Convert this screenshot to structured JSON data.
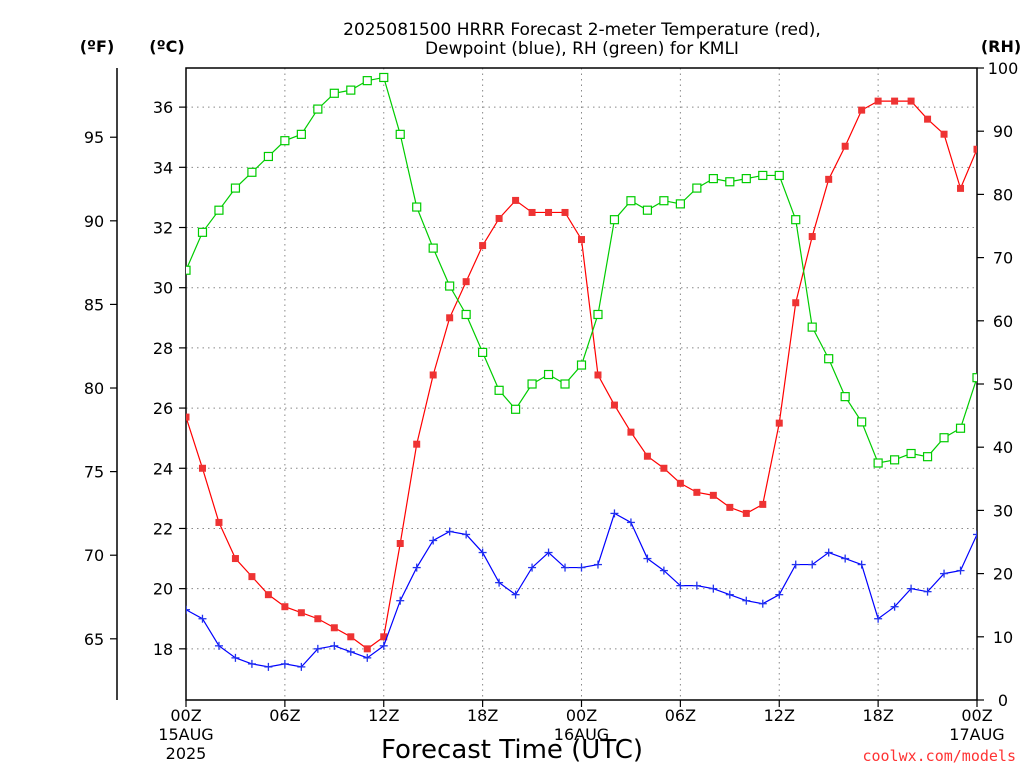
{
  "header": {
    "title_line1": "2025081500 HRRR Forecast 2-meter Temperature (red),",
    "title_line2": "Dewpoint (blue), RH (green) for KMLI",
    "unit_f": "(ºF)",
    "unit_c": "(ºC)",
    "unit_rh": "(RH)"
  },
  "footer": {
    "xlabel": "Forecast Time (UTC)",
    "credit": "coolwx.com/models"
  },
  "chart_data": {
    "type": "line",
    "x_unit": "forecast hour from 2025-08-15 00Z",
    "x": [
      0,
      1,
      2,
      3,
      4,
      5,
      6,
      7,
      8,
      9,
      10,
      11,
      12,
      13,
      14,
      15,
      16,
      17,
      18,
      19,
      20,
      21,
      22,
      23,
      24,
      25,
      26,
      27,
      28,
      29,
      30,
      31,
      32,
      33,
      34,
      35,
      36,
      37,
      38,
      39,
      40,
      41,
      42,
      43,
      44,
      45,
      46,
      47,
      48
    ],
    "xlim": [
      0,
      48
    ],
    "x_ticks": [
      {
        "x": 0,
        "label": "00Z",
        "sub1": "15AUG",
        "sub2": "2025"
      },
      {
        "x": 6,
        "label": "06Z",
        "sub1": "",
        "sub2": ""
      },
      {
        "x": 12,
        "label": "12Z",
        "sub1": "",
        "sub2": ""
      },
      {
        "x": 18,
        "label": "18Z",
        "sub1": "",
        "sub2": ""
      },
      {
        "x": 24,
        "label": "00Z",
        "sub1": "16AUG",
        "sub2": ""
      },
      {
        "x": 30,
        "label": "06Z",
        "sub1": "",
        "sub2": ""
      },
      {
        "x": 36,
        "label": "12Z",
        "sub1": "",
        "sub2": ""
      },
      {
        "x": 42,
        "label": "18Z",
        "sub1": "",
        "sub2": ""
      },
      {
        "x": 48,
        "label": "00Z",
        "sub1": "17AUG",
        "sub2": ""
      }
    ],
    "ylim_c": [
      16.3,
      37.3
    ],
    "y_ticks_c": [
      18,
      20,
      22,
      24,
      26,
      28,
      30,
      32,
      34,
      36
    ],
    "y_ticks_f": [
      65,
      70,
      75,
      80,
      85,
      90,
      95
    ],
    "ylim_rh": [
      0,
      100
    ],
    "y_ticks_rh": [
      0,
      10,
      20,
      30,
      40,
      50,
      60,
      70,
      80,
      90,
      100
    ],
    "grid": true,
    "series": [
      {
        "key": "temperature",
        "color": "#ff0000",
        "fill": "#ee3333",
        "marker": "filled-square",
        "axis": "c",
        "values": [
          25.7,
          24.0,
          22.2,
          21.0,
          20.4,
          19.8,
          19.4,
          19.2,
          19.0,
          18.7,
          18.4,
          18.0,
          18.4,
          21.5,
          24.8,
          27.1,
          29.0,
          30.2,
          31.4,
          32.3,
          32.9,
          32.5,
          32.5,
          32.5,
          31.6,
          27.1,
          26.1,
          25.2,
          24.4,
          24.0,
          23.5,
          23.2,
          23.1,
          22.7,
          22.5,
          22.8,
          25.5,
          29.5,
          31.7,
          33.6,
          34.7,
          35.9,
          36.2,
          36.2,
          36.2,
          35.6,
          35.1,
          33.3,
          34.6
        ]
      },
      {
        "key": "dewpoint",
        "color": "#0000ff",
        "fill": "#2233ee",
        "marker": "plus",
        "axis": "c",
        "values": [
          19.3,
          19.0,
          18.1,
          17.7,
          17.5,
          17.4,
          17.5,
          17.4,
          18.0,
          18.1,
          17.9,
          17.7,
          18.1,
          19.6,
          20.7,
          21.6,
          21.9,
          21.8,
          21.2,
          20.2,
          19.8,
          20.7,
          21.2,
          20.7,
          20.7,
          20.8,
          22.5,
          22.2,
          21.0,
          20.6,
          20.1,
          20.1,
          20.0,
          19.8,
          19.6,
          19.5,
          19.8,
          20.8,
          20.8,
          21.2,
          21.0,
          20.8,
          19.0,
          19.4,
          20.0,
          19.9,
          20.5,
          20.6,
          21.8
        ]
      },
      {
        "key": "rh",
        "color": "#00cc00",
        "fill": "#ffffff",
        "marker": "open-square",
        "axis": "rh",
        "values": [
          68,
          74,
          77.5,
          81,
          83.5,
          86,
          88.5,
          89.5,
          93.5,
          96,
          96.5,
          98,
          98.5,
          89.5,
          78,
          71.5,
          65.5,
          61,
          55,
          49,
          46,
          50,
          51.5,
          50,
          53,
          61,
          76,
          79,
          77.5,
          79,
          78.5,
          81,
          82.5,
          82,
          82.5,
          83,
          83,
          76,
          59,
          54,
          48,
          44,
          37.5,
          38,
          39,
          38.5,
          41.5,
          43,
          51
        ]
      }
    ]
  }
}
